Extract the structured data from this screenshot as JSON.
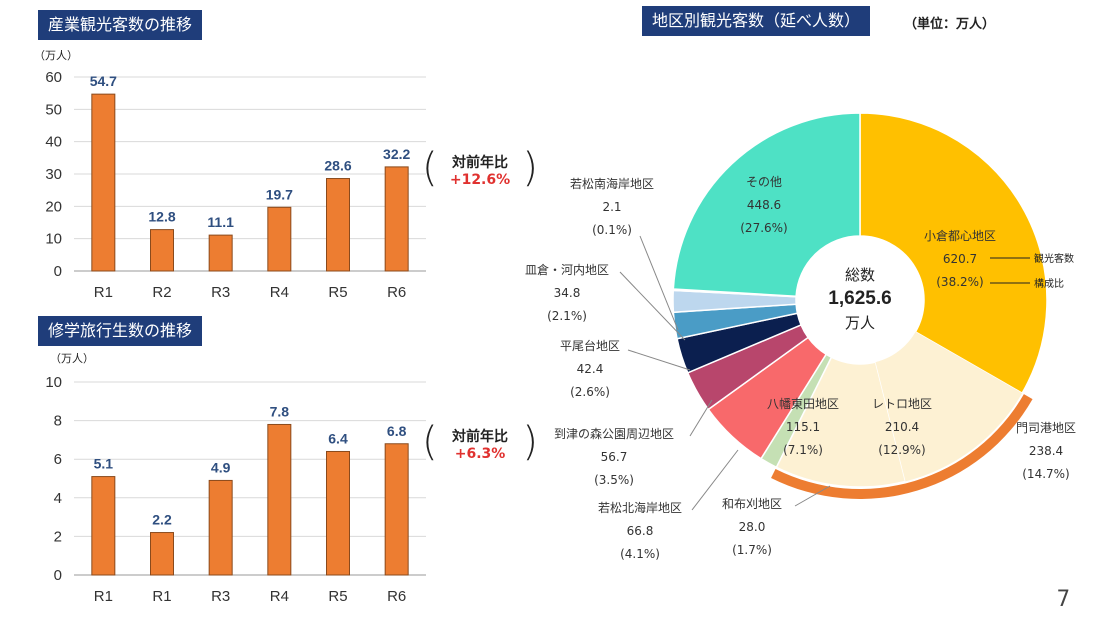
{
  "chart1": {
    "title": "産業観光客数の推移",
    "unit": "（万人）",
    "comparison": {
      "label": "対前年比",
      "value": "+12.6%"
    }
  },
  "chart2": {
    "title": "修学旅行生数の推移",
    "unit": "（万人）",
    "comparison": {
      "label": "対前年比",
      "value": "+6.3%"
    }
  },
  "chart3": {
    "title": "地区別観光客数（延べ人数）",
    "unit": "（単位：万人）",
    "center": {
      "l1": "総数",
      "l2": "1,625.6",
      "l3": "万人"
    },
    "legend_note": {
      "visitors": "観光客数",
      "ratio": "構成比"
    }
  },
  "page_number": "7",
  "colors": {
    "bar": "#ed7d31",
    "bar_stroke": "#8a4a1c",
    "value_label": "#2f4f80",
    "title_bg": "#1f3d7a"
  },
  "chart_data": [
    {
      "type": "bar",
      "categories": [
        "R1",
        "R2",
        "R3",
        "R4",
        "R5",
        "R6"
      ],
      "values": [
        54.7,
        12.8,
        11.1,
        19.7,
        28.6,
        32.2
      ],
      "value_labels": [
        "54.7",
        "12.8",
        "11.1",
        "19.7",
        "28.6",
        "32.2"
      ],
      "title": "産業観光客数の推移",
      "ylabel": "（万人）",
      "ylim": [
        0,
        60
      ],
      "yticks": [
        "0",
        "10",
        "20",
        "30",
        "40",
        "50",
        "60"
      ],
      "ytick_values": [
        0,
        10,
        20,
        30,
        40,
        50,
        60
      ],
      "grid": true
    },
    {
      "type": "bar",
      "categories": [
        "R1",
        "R1",
        "R3",
        "R4",
        "R5",
        "R6"
      ],
      "values": [
        5.1,
        2.2,
        4.9,
        7.8,
        6.4,
        6.8
      ],
      "value_labels": [
        "5.1",
        "2.2",
        "4.9",
        "7.8",
        "6.4",
        "6.8"
      ],
      "title": "修学旅行生数の推移",
      "ylabel": "（万人）",
      "ylim": [
        0,
        10
      ],
      "yticks": [
        "0",
        "2",
        "4",
        "6",
        "8",
        "10"
      ],
      "ytick_values": [
        0,
        2,
        4,
        6,
        8,
        10
      ],
      "grid": true
    },
    {
      "type": "pie",
      "title": "地区別観光客数（延べ人数）",
      "total": 1625.6,
      "slices": [
        {
          "name": "小倉都心地区",
          "value": 620.7,
          "value_label": "620.7",
          "pct_label": "(38.2%)",
          "color": "#ffc000"
        },
        {
          "name": "門司港地区",
          "value": 238.4,
          "value_label": "238.4",
          "pct_label": "(14.7%)",
          "color": "#ed7d31"
        },
        {
          "name": "レトロ地区",
          "value": 210.4,
          "value_label": "210.4",
          "pct_label": "(12.9%)",
          "color": "#fdf1d3"
        },
        {
          "name": "和布刈地区",
          "value": 28.0,
          "value_label": "28.0",
          "pct_label": "(1.7%)",
          "color": "#c5e0b4"
        },
        {
          "name": "八幡東田地区",
          "value": 115.1,
          "value_label": "115.1",
          "pct_label": "(7.1%)",
          "color": "#f8696b"
        },
        {
          "name": "若松北海岸地区",
          "value": 66.8,
          "value_label": "66.8",
          "pct_label": "(4.1%)",
          "color": "#b8466c"
        },
        {
          "name": "到津の森公園周辺地区",
          "value": 56.7,
          "value_label": "56.7",
          "pct_label": "(3.5%)",
          "color": "#0b1f4f"
        },
        {
          "name": "平尾台地区",
          "value": 42.4,
          "value_label": "42.4",
          "pct_label": "(2.6%)",
          "color": "#4a9cc6"
        },
        {
          "name": "皿倉・河内地区",
          "value": 34.8,
          "value_label": "34.8",
          "pct_label": "(2.1%)",
          "color": "#bdd7ee"
        },
        {
          "name": "若松南海岸地区",
          "value": 2.1,
          "value_label": "2.1",
          "pct_label": "(0.1%)",
          "color": "#9dc3e6"
        },
        {
          "name": "その他",
          "value": 448.6,
          "value_label": "448.6",
          "pct_label": "(27.6%)",
          "color": "#4ee1c5"
        }
      ]
    }
  ]
}
